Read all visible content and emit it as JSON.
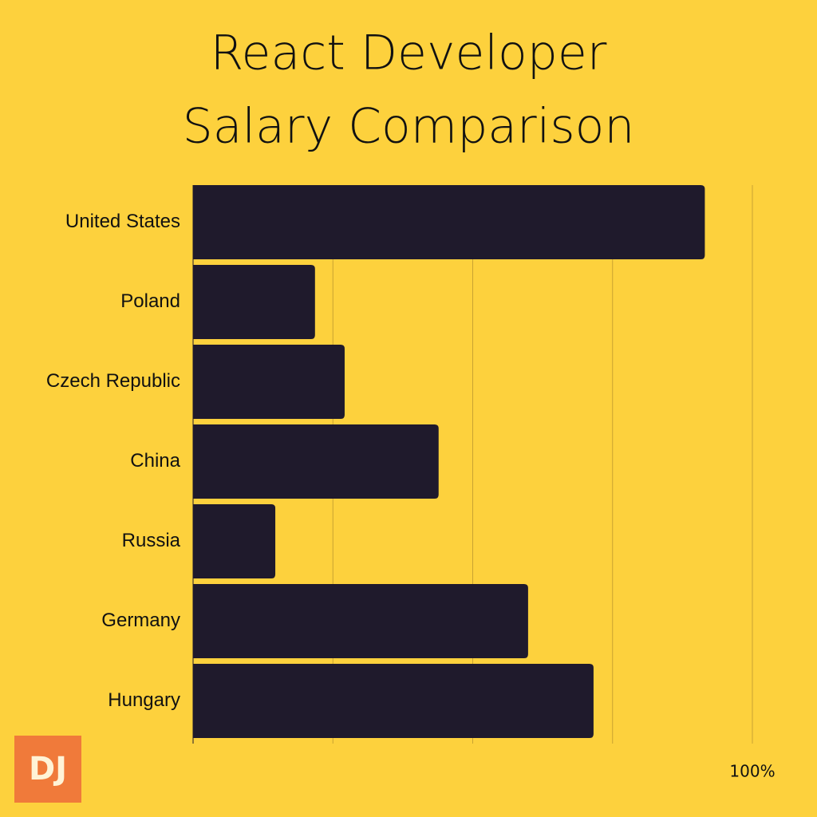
{
  "chart_data": {
    "type": "bar",
    "orientation": "horizontal",
    "title": [
      "React Developer",
      "Salary Comparison"
    ],
    "categories": [
      "United States",
      "Poland",
      "Czech Republic",
      "China",
      "Russia",
      "Germany",
      "Hungary"
    ],
    "values": [
      91.5,
      21.8,
      27.1,
      43.9,
      14.7,
      59.9,
      71.6
    ],
    "color": "#1f1a2c",
    "xlim": [
      0,
      100
    ],
    "xticks": [
      {
        "value": 100,
        "label": "100%"
      }
    ],
    "xgrid": [
      25,
      50,
      75,
      100
    ],
    "grid": true
  },
  "logo": "DJ"
}
